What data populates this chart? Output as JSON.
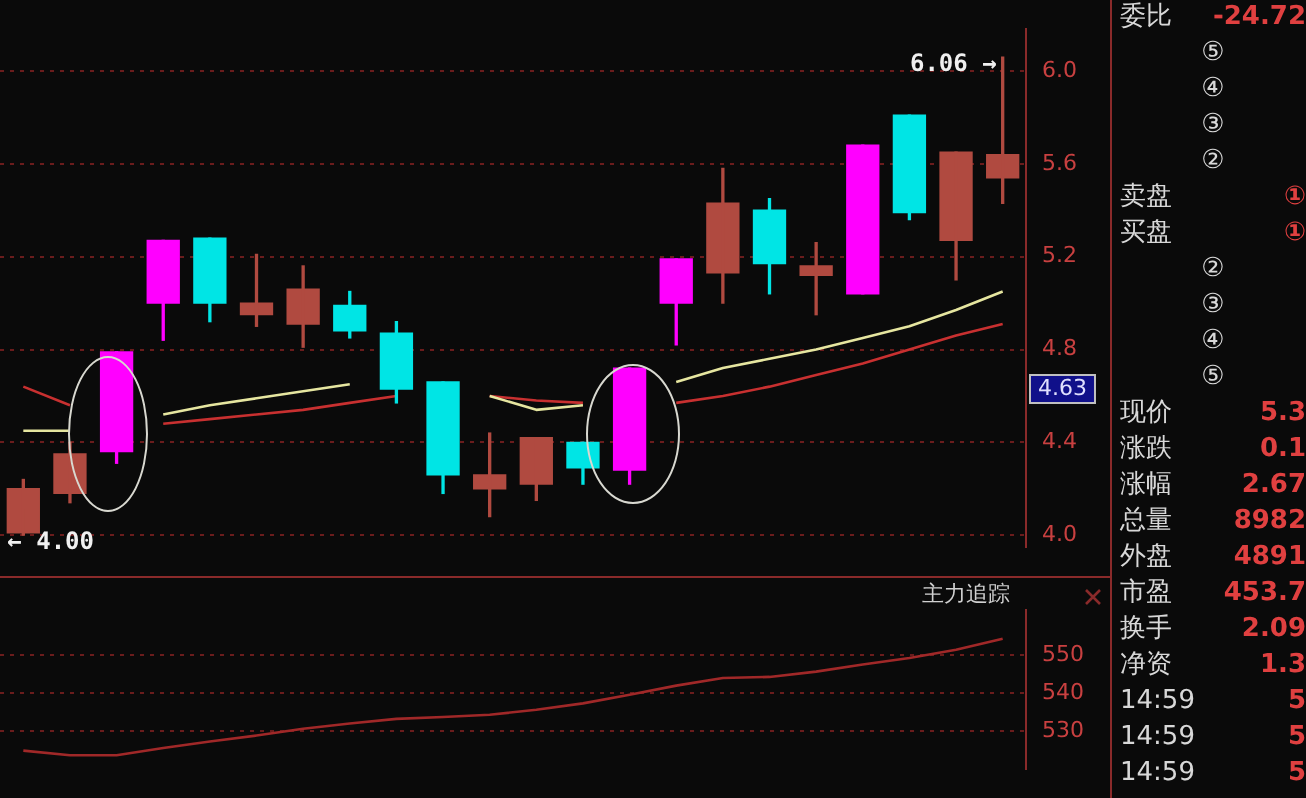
{
  "chart_data": [
    {
      "type": "candlestick",
      "categories": [
        null,
        null,
        null,
        null,
        null,
        null,
        null,
        null,
        null,
        null,
        null,
        null,
        null,
        null,
        null,
        null,
        null,
        null,
        null,
        null,
        null,
        null
      ],
      "ohlc": [
        [
          4.01,
          4.24,
          4.0,
          4.2
        ],
        [
          4.18,
          4.4,
          4.14,
          4.35
        ],
        [
          4.36,
          4.79,
          4.31,
          4.79
        ],
        [
          5.0,
          5.27,
          4.84,
          5.27
        ],
        [
          5.28,
          5.28,
          4.92,
          5.0
        ],
        [
          4.95,
          5.21,
          4.9,
          5.0
        ],
        [
          4.91,
          5.16,
          4.81,
          5.06
        ],
        [
          4.99,
          5.05,
          4.85,
          4.88
        ],
        [
          4.87,
          4.92,
          4.57,
          4.63
        ],
        [
          4.66,
          4.66,
          4.18,
          4.26
        ],
        [
          4.2,
          4.44,
          4.08,
          4.26
        ],
        [
          4.22,
          4.42,
          4.15,
          4.42
        ],
        [
          4.4,
          4.4,
          4.22,
          4.29
        ],
        [
          4.28,
          4.72,
          4.22,
          4.72
        ],
        [
          5.0,
          5.19,
          4.82,
          5.19
        ],
        [
          5.13,
          5.58,
          5.0,
          5.43
        ],
        [
          5.4,
          5.45,
          5.04,
          5.17
        ],
        [
          5.12,
          5.26,
          4.95,
          5.16
        ],
        [
          5.04,
          5.68,
          5.04,
          5.68
        ],
        [
          5.81,
          5.81,
          5.36,
          5.39
        ],
        [
          5.27,
          5.65,
          5.1,
          5.65
        ],
        [
          5.54,
          6.06,
          5.43,
          5.64
        ]
      ],
      "colors": [
        "#b04a40",
        "#b04a40",
        "#ff00ff",
        "#ff00ff",
        "#00e5e5",
        "#b04a40",
        "#b04a40",
        "#00e5e5",
        "#00e5e5",
        "#00e5e5",
        "#b04a40",
        "#b04a40",
        "#00e5e5",
        "#ff00ff",
        "#ff00ff",
        "#b04a40",
        "#00e5e5",
        "#b04a40",
        "#ff00ff",
        "#00e5e5",
        "#b04a40",
        "#b04a40"
      ],
      "series": [
        {
          "type": "line",
          "color": "#e6e6a0",
          "values": [
            4.45,
            4.45,
            null,
            4.52,
            4.56,
            4.59,
            4.62,
            4.65,
            null,
            null,
            4.6,
            4.54,
            4.56,
            null,
            4.66,
            4.72,
            4.76,
            4.8,
            4.85,
            4.9,
            4.97,
            5.05
          ]
        },
        {
          "type": "line",
          "color": "#c83030",
          "values": [
            4.64,
            4.56,
            null,
            4.48,
            4.5,
            4.52,
            4.54,
            4.57,
            4.6,
            null,
            4.6,
            4.58,
            4.57,
            null,
            4.57,
            4.6,
            4.64,
            4.69,
            4.74,
            4.8,
            4.86,
            4.91
          ]
        }
      ],
      "ylim": [
        3.95,
        6.18
      ],
      "yticks": [
        {
          "value": 4.0,
          "label": "4.0"
        },
        {
          "value": 4.4,
          "label": "4.4"
        },
        {
          "value": 4.8,
          "label": "4.8"
        },
        {
          "value": 5.2,
          "label": "5.2"
        },
        {
          "value": 5.6,
          "label": "5.6"
        },
        {
          "value": 6.0,
          "label": "6.0"
        }
      ],
      "annotations": [
        "6.06 →",
        "← 4.00",
        {
          "text": "4.63",
          "y": 4.63
        }
      ],
      "grid": "y",
      "legend": false,
      "tick_labels": "y"
    },
    {
      "type": "line",
      "title": "主力追踪",
      "categories": [
        null,
        null,
        null,
        null,
        null,
        null,
        null,
        null,
        null,
        null,
        null,
        null,
        null,
        null,
        null,
        null,
        null,
        null,
        null,
        null,
        null,
        null
      ],
      "series": [
        {
          "color": "#a02828",
          "values": [
            524.8,
            523.6,
            523.6,
            525.5,
            527.2,
            528.8,
            530.6,
            532.0,
            533.2,
            533.7,
            534.3,
            535.6,
            537.3,
            539.6,
            542.0,
            544.0,
            544.3,
            545.7,
            547.6,
            549.3,
            551.5,
            554.4
          ]
        }
      ],
      "ylim": [
        520,
        562
      ],
      "yticks": [
        530,
        540,
        550
      ],
      "grid": "y",
      "legend": false,
      "tick_labels": "y"
    },
    {
      "type": "other",
      "annotations": [
        "委比 -24.72",
        "⑤",
        "④",
        "③",
        "②",
        "卖盘 ①",
        "买盘 ①",
        "②",
        "③",
        "④",
        "⑤",
        "现价 5.3",
        "涨跌 0.1",
        "涨幅 2.67",
        "总量 8982",
        "外盘 4891",
        "市盈 453.7",
        "换手 2.09",
        "净资 1.3",
        "14:59 5",
        "14:59 5",
        "14:59 5"
      ]
    }
  ]
}
